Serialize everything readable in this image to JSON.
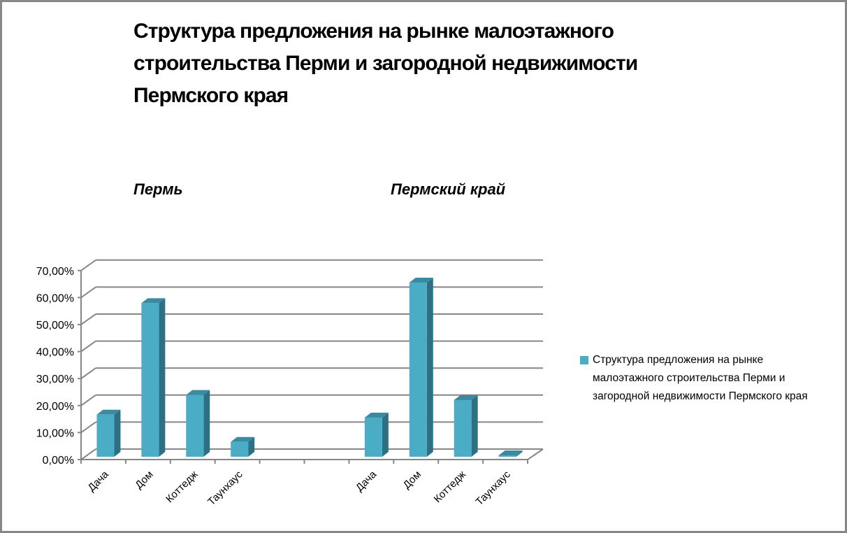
{
  "title": "Структура предложения на рынке  малоэтажного\nстроительства Перми и загородной недвижимости\nПермского края",
  "subtitles": {
    "left": "Пермь",
    "right": "Пермский край"
  },
  "legend": {
    "label": "Структура предложения на рынке малоэтажного строительства Перми и загородной недвижимости Пермского края",
    "color": "#4bacc6"
  },
  "y_ticks": [
    "0,00%",
    "10,00%",
    "20,00%",
    "30,00%",
    "40,00%",
    "50,00%",
    "60,00%",
    "70,00%"
  ],
  "colors": {
    "bar_front": "#4bacc6",
    "bar_side": "#2f6f82",
    "bar_top": "#3a8ba2",
    "grid": "#868686"
  },
  "chart_data": {
    "type": "bar",
    "style": "3d-clustered-column",
    "title": "Структура предложения на рынке малоэтажного строительства Перми и загородной недвижимости Пермского края",
    "groups": [
      "Пермь",
      "Пермский край"
    ],
    "categories": [
      "Дача",
      "Дом",
      "Коттедж",
      "Таунхаус",
      "",
      "",
      "Дача",
      "Дом",
      "Коттедж",
      "Таунхаус"
    ],
    "series": [
      {
        "name": "Структура предложения на рынке малоэтажного строительства Перми и загородной недвижимости Пермского края",
        "values": [
          15.6,
          56.9,
          22.9,
          5.5,
          null,
          null,
          14.5,
          64.5,
          21.0,
          0.5
        ]
      }
    ],
    "by_group": {
      "Пермь": {
        "Дача": 15.6,
        "Дом": 56.9,
        "Коттедж": 22.9,
        "Таунхаус": 5.5
      },
      "Пермский край": {
        "Дача": 14.5,
        "Дом": 64.5,
        "Коттедж": 21.0,
        "Таунхаус": 0.5
      }
    },
    "xlabel": "",
    "ylabel": "",
    "ylim": [
      0,
      70
    ],
    "y_unit": "%",
    "y_tick_labels": [
      "0,00%",
      "10,00%",
      "20,00%",
      "30,00%",
      "40,00%",
      "50,00%",
      "60,00%",
      "70,00%"
    ],
    "grid": true,
    "legend_position": "right"
  }
}
